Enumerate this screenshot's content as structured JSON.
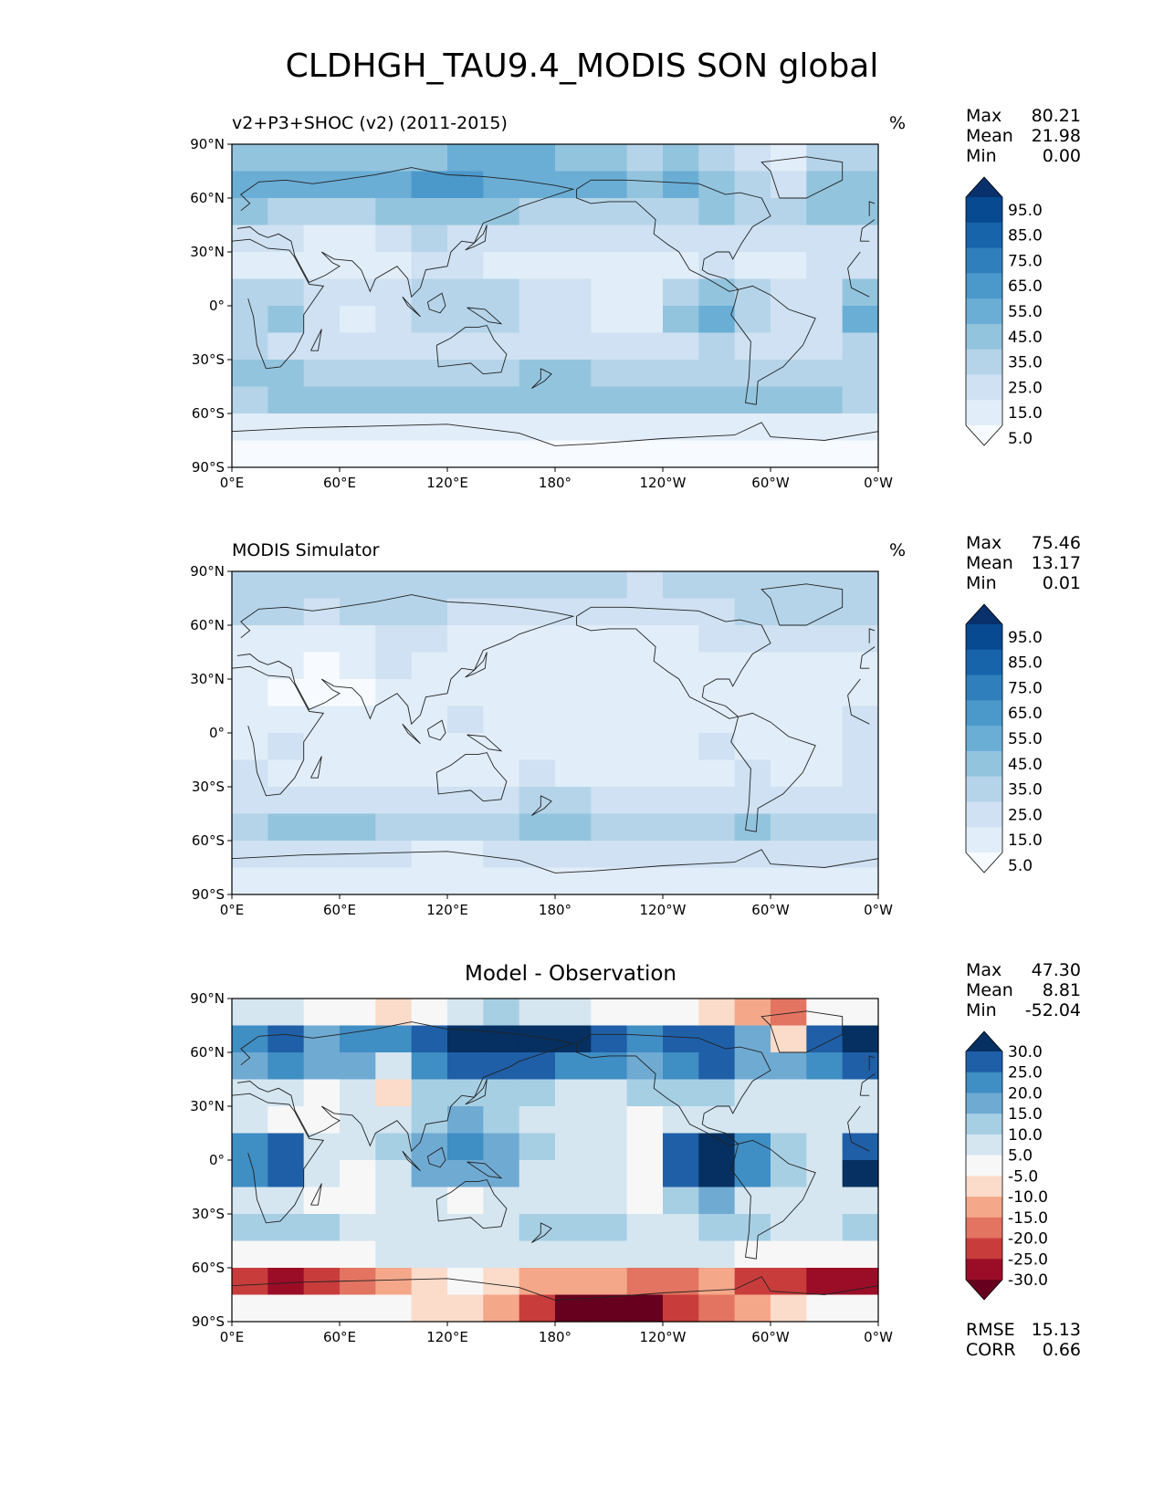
{
  "page_title": "CLDHGH_TAU9.4_MODIS SON global",
  "chart_data": [
    {
      "type": "heatmap",
      "kind": "filled-contour world map",
      "title": "v2+P3+SHOC (v2) (2011-2015)",
      "units": "%",
      "stats": {
        "max_label": "Max",
        "max": "80.21",
        "mean_label": "Mean",
        "mean": "21.98",
        "min_label": "Min",
        "min": "0.00"
      },
      "x_ticks": [
        "0°E",
        "60°E",
        "120°E",
        "180°",
        "120°W",
        "60°W",
        "0°W"
      ],
      "y_ticks": [
        "90°N",
        "60°N",
        "30°N",
        "0°",
        "30°S",
        "60°S",
        "90°S"
      ],
      "colorbar_levels": [
        "95.0",
        "85.0",
        "75.0",
        "65.0",
        "55.0",
        "45.0",
        "35.0",
        "25.0",
        "15.0",
        "5.0"
      ],
      "colorbar_colors": [
        "#08306b",
        "#084a91",
        "#1764ab",
        "#2f7fbc",
        "#4b98ca",
        "#6aaed6",
        "#93c4de",
        "#b5d4e9",
        "#cfe1f2",
        "#e1edf8",
        "#f7fbff"
      ],
      "field": {
        "lat": [
          80,
          65,
          50,
          35,
          20,
          5,
          -10,
          -25,
          -40,
          -55,
          -70,
          -85
        ],
        "lon_count": 18,
        "values": [
          [
            45,
            40,
            38,
            40,
            42,
            45,
            48,
            50,
            46,
            42,
            38,
            34,
            36,
            30,
            20,
            12,
            28,
            35
          ],
          [
            52,
            50,
            46,
            50,
            55,
            60,
            58,
            55,
            52,
            50,
            48,
            45,
            50,
            45,
            30,
            18,
            40,
            45
          ],
          [
            38,
            35,
            30,
            32,
            38,
            42,
            40,
            38,
            35,
            32,
            30,
            28,
            32,
            38,
            30,
            34,
            38,
            40
          ],
          [
            25,
            18,
            12,
            14,
            20,
            28,
            25,
            22,
            20,
            18,
            20,
            22,
            25,
            20,
            22,
            22,
            18,
            20
          ],
          [
            15,
            12,
            10,
            12,
            15,
            18,
            20,
            15,
            12,
            14,
            12,
            10,
            15,
            18,
            14,
            15,
            16,
            18
          ],
          [
            30,
            35,
            20,
            18,
            22,
            26,
            30,
            28,
            20,
            18,
            15,
            14,
            35,
            40,
            30,
            22,
            20,
            45
          ],
          [
            35,
            40,
            18,
            14,
            18,
            28,
            30,
            26,
            20,
            18,
            15,
            12,
            40,
            50,
            35,
            20,
            18,
            55
          ],
          [
            28,
            25,
            22,
            18,
            20,
            22,
            18,
            20,
            22,
            20,
            18,
            16,
            25,
            30,
            25,
            22,
            20,
            30
          ],
          [
            40,
            38,
            35,
            32,
            30,
            28,
            30,
            35,
            38,
            36,
            34,
            32,
            30,
            35,
            35,
            32,
            30,
            35
          ],
          [
            35,
            38,
            40,
            42,
            40,
            38,
            40,
            42,
            45,
            45,
            42,
            40,
            42,
            45,
            40,
            38,
            36,
            35
          ],
          [
            12,
            10,
            10,
            10,
            10,
            8,
            8,
            10,
            10,
            10,
            10,
            10,
            10,
            10,
            10,
            10,
            10,
            10
          ],
          [
            5,
            5,
            5,
            5,
            5,
            5,
            5,
            5,
            5,
            5,
            5,
            5,
            5,
            5,
            5,
            5,
            5,
            5
          ]
        ]
      }
    },
    {
      "type": "heatmap",
      "kind": "filled-contour world map",
      "title": "MODIS Simulator",
      "units": "%",
      "stats": {
        "max_label": "Max",
        "max": "75.46",
        "mean_label": "Mean",
        "mean": "13.17",
        "min_label": "Min",
        "min": "0.01"
      },
      "x_ticks": [
        "0°E",
        "60°E",
        "120°E",
        "180°",
        "120°W",
        "60°W",
        "0°W"
      ],
      "y_ticks": [
        "90°N",
        "60°N",
        "30°N",
        "0°",
        "30°S",
        "60°S",
        "90°S"
      ],
      "colorbar_levels": [
        "95.0",
        "85.0",
        "75.0",
        "65.0",
        "55.0",
        "45.0",
        "35.0",
        "25.0",
        "15.0",
        "5.0"
      ],
      "colorbar_colors": [
        "#08306b",
        "#084a91",
        "#1764ab",
        "#2f7fbc",
        "#4b98ca",
        "#6aaed6",
        "#93c4de",
        "#b5d4e9",
        "#cfe1f2",
        "#e1edf8",
        "#f7fbff"
      ],
      "field": {
        "lat": [
          80,
          65,
          50,
          35,
          20,
          5,
          -10,
          -25,
          -40,
          -55,
          -70,
          -85
        ],
        "lon_count": 18,
        "values": [
          [
            30,
            28,
            26,
            28,
            30,
            30,
            32,
            32,
            30,
            28,
            26,
            24,
            26,
            30,
            28,
            26,
            28,
            30
          ],
          [
            28,
            26,
            24,
            26,
            28,
            26,
            24,
            22,
            22,
            20,
            20,
            20,
            22,
            24,
            26,
            28,
            28,
            30
          ],
          [
            15,
            12,
            10,
            12,
            20,
            18,
            14,
            12,
            12,
            12,
            12,
            12,
            14,
            16,
            18,
            20,
            18,
            16
          ],
          [
            8,
            6,
            5,
            6,
            20,
            15,
            10,
            8,
            8,
            8,
            10,
            10,
            10,
            8,
            8,
            10,
            8,
            8
          ],
          [
            6,
            5,
            5,
            5,
            8,
            10,
            8,
            6,
            6,
            6,
            6,
            6,
            8,
            10,
            8,
            8,
            8,
            8
          ],
          [
            10,
            12,
            8,
            8,
            10,
            14,
            16,
            14,
            10,
            8,
            8,
            8,
            12,
            14,
            12,
            10,
            10,
            18
          ],
          [
            15,
            18,
            10,
            8,
            10,
            14,
            15,
            12,
            10,
            8,
            8,
            8,
            14,
            16,
            14,
            10,
            10,
            20
          ],
          [
            18,
            15,
            14,
            12,
            12,
            12,
            12,
            14,
            16,
            15,
            14,
            12,
            12,
            14,
            16,
            15,
            14,
            18
          ],
          [
            25,
            24,
            22,
            20,
            20,
            20,
            22,
            24,
            26,
            26,
            25,
            24,
            22,
            24,
            25,
            24,
            22,
            24
          ],
          [
            35,
            36,
            38,
            36,
            34,
            32,
            32,
            34,
            36,
            36,
            35,
            34,
            32,
            34,
            36,
            35,
            34,
            34
          ],
          [
            20,
            18,
            18,
            18,
            16,
            14,
            14,
            16,
            16,
            16,
            16,
            16,
            16,
            16,
            16,
            16,
            16,
            18
          ],
          [
            8,
            8,
            8,
            8,
            8,
            8,
            8,
            8,
            8,
            8,
            8,
            8,
            8,
            8,
            8,
            8,
            8,
            8
          ]
        ]
      }
    },
    {
      "type": "heatmap",
      "kind": "filled-contour world map (difference)",
      "title": "Model - Observation",
      "units": "",
      "stats": {
        "max_label": "Max",
        "max": "47.30",
        "mean_label": "Mean",
        "mean": "8.81",
        "min_label": "Min",
        "min": "-52.04"
      },
      "footer": {
        "rmse_label": "RMSE",
        "rmse": "15.13",
        "corr_label": "CORR",
        "corr": "0.66"
      },
      "x_ticks": [
        "0°E",
        "60°E",
        "120°E",
        "180°",
        "120°W",
        "60°W",
        "0°W"
      ],
      "y_ticks": [
        "90°N",
        "60°N",
        "30°N",
        "0°",
        "30°S",
        "60°S",
        "90°S"
      ],
      "colorbar_levels": [
        "30.0",
        "25.0",
        "20.0",
        "15.0",
        "10.0",
        "5.0",
        "-5.0",
        "-10.0",
        "-15.0",
        "-20.0",
        "-25.0",
        "-30.0"
      ],
      "colorbar_colors": [
        "#053061",
        "#1f5fa7",
        "#3f8ec4",
        "#6faad3",
        "#a7cfe4",
        "#d5e6f1",
        "#f7f7f7",
        "#fbdbc9",
        "#f4a889",
        "#e27461",
        "#c93c3c",
        "#9b0d27",
        "#67001f"
      ],
      "field": {
        "lat": [
          80,
          65,
          50,
          35,
          20,
          5,
          -10,
          -25,
          -40,
          -55,
          -70,
          -85
        ],
        "lon_count": 18,
        "values": [
          [
            10,
            8,
            5,
            0,
            -6,
            0,
            8,
            12,
            10,
            6,
            2,
            0,
            4,
            -8,
            -14,
            -16,
            0,
            4
          ],
          [
            24,
            28,
            18,
            22,
            24,
            30,
            34,
            36,
            34,
            32,
            28,
            22,
            28,
            26,
            16,
            -6,
            28,
            34
          ],
          [
            20,
            22,
            16,
            18,
            10,
            24,
            28,
            30,
            26,
            24,
            22,
            20,
            22,
            26,
            16,
            18,
            22,
            26
          ],
          [
            10,
            6,
            4,
            6,
            -6,
            12,
            14,
            14,
            12,
            10,
            8,
            12,
            14,
            14,
            10,
            10,
            10,
            8
          ],
          [
            6,
            4,
            2,
            6,
            10,
            14,
            16,
            12,
            8,
            8,
            6,
            4,
            8,
            10,
            8,
            8,
            8,
            10
          ],
          [
            22,
            26,
            10,
            8,
            12,
            16,
            22,
            20,
            14,
            10,
            6,
            4,
            28,
            32,
            22,
            14,
            10,
            30
          ],
          [
            24,
            30,
            6,
            4,
            6,
            16,
            18,
            16,
            10,
            8,
            6,
            4,
            28,
            36,
            24,
            12,
            8,
            34
          ],
          [
            8,
            6,
            4,
            -4,
            6,
            8,
            4,
            6,
            8,
            8,
            6,
            4,
            14,
            18,
            10,
            8,
            6,
            10
          ],
          [
            14,
            12,
            12,
            10,
            10,
            10,
            8,
            10,
            12,
            14,
            12,
            10,
            10,
            14,
            12,
            10,
            8,
            12
          ],
          [
            2,
            2,
            2,
            4,
            8,
            8,
            6,
            6,
            6,
            8,
            8,
            6,
            6,
            8,
            4,
            2,
            2,
            2
          ],
          [
            -22,
            -26,
            -22,
            -18,
            -14,
            -8,
            -4,
            -6,
            -10,
            -12,
            -14,
            -16,
            -16,
            -14,
            -20,
            -24,
            -26,
            -26
          ],
          [
            -4,
            -4,
            -2,
            -2,
            -4,
            -6,
            -8,
            -12,
            -22,
            -30,
            -34,
            -30,
            -22,
            -16,
            -10,
            -6,
            -4,
            -4
          ]
        ]
      }
    }
  ]
}
